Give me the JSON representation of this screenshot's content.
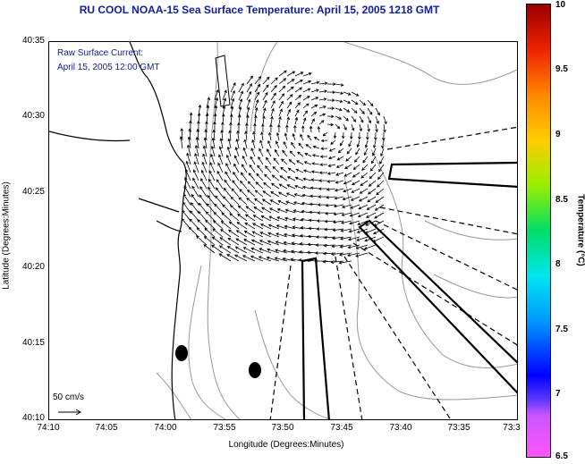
{
  "title": "RU COOL  NOAA-15  Sea Surface Temperature:  April 15, 2005 1218 GMT",
  "annotation": {
    "line1": "Raw Surface Current:",
    "line2": "April 15, 2005 12:00 GMT"
  },
  "axes": {
    "xlabel": "Longitude (Degrees:Minutes)",
    "ylabel": "Latitude (Degrees:Minutes)",
    "x_ticks": [
      "74:10",
      "74:05",
      "74:00",
      "73:55",
      "73:50",
      "73:45",
      "73:40",
      "73:35",
      "73:3"
    ],
    "y_ticks": [
      "40:35",
      "40:30",
      "40:25",
      "40:20",
      "40:15",
      "40:10"
    ]
  },
  "colorbar": {
    "label": "Temperature (°C)",
    "ticks": [
      "10",
      "9.5",
      "9",
      "8.5",
      "8",
      "7.5",
      "7",
      "6.5"
    ],
    "range": [
      6.5,
      10
    ]
  },
  "scale_bar": {
    "label": "50 cm/s"
  },
  "colors": {
    "title": "#1020a0",
    "coast": "#000000",
    "bathymetry": "#999999"
  }
}
